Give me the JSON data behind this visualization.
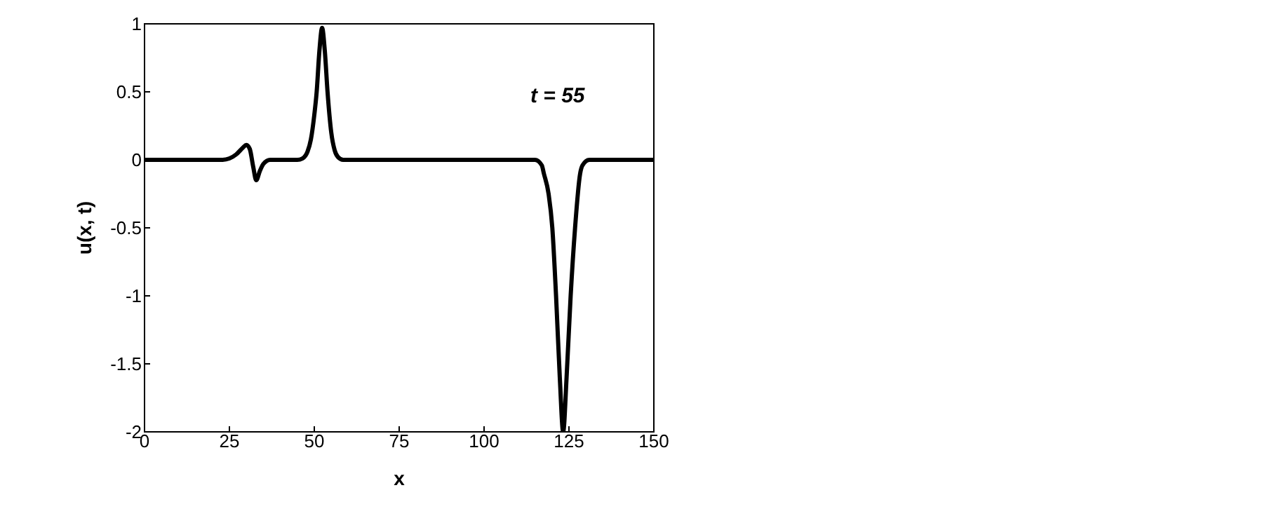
{
  "chart_data": {
    "type": "line",
    "xlabel": "x",
    "ylabel": "u(x, t)",
    "annotations": [
      "t = 55"
    ],
    "xlim": [
      0,
      150
    ],
    "ylim": [
      -2,
      1
    ],
    "xticks": [
      0,
      25,
      50,
      75,
      100,
      125,
      150
    ],
    "yticks": [
      -2,
      -1.5,
      -1,
      -0.5,
      0,
      0.5,
      1
    ],
    "marker": "none",
    "line_style": "solid",
    "series": [
      {
        "color": "#000000",
        "x": [
          0,
          20,
          23,
          25,
          27,
          29,
          30,
          31,
          32,
          32.9,
          34,
          35,
          37,
          40,
          45,
          46.5,
          48,
          49,
          50,
          50.7,
          51.5,
          52.3,
          53.1,
          53.9,
          55,
          56,
          57,
          58.5,
          62,
          80,
          100,
          110,
          115,
          117,
          117.6,
          119,
          120.1,
          121.2,
          122.3,
          123.3,
          124.3,
          125.5,
          126.8,
          128.3,
          129,
          131,
          140,
          150
        ],
        "values": [
          0,
          0,
          0,
          0.01,
          0.04,
          0.09,
          0.11,
          0.08,
          -0.05,
          -0.15,
          -0.08,
          -0.03,
          0,
          0,
          0,
          0.01,
          0.06,
          0.15,
          0.33,
          0.5,
          0.8,
          0.97,
          0.8,
          0.5,
          0.2,
          0.07,
          0.02,
          0,
          0,
          0,
          0,
          0,
          0,
          -0.04,
          -0.1,
          -0.25,
          -0.5,
          -1,
          -1.6,
          -2,
          -1.6,
          -1,
          -0.5,
          -0.1,
          -0.04,
          0,
          0,
          0
        ]
      }
    ]
  }
}
